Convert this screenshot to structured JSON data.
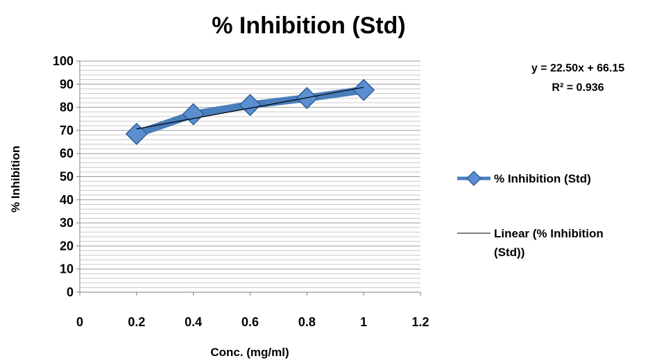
{
  "chart_data": {
    "type": "line",
    "title": "% Inhibition (Std)",
    "xlabel": "Conc. (mg/ml)",
    "ylabel": "% Inhibition",
    "xlim": [
      0,
      1.2
    ],
    "ylim": [
      0,
      100
    ],
    "x_ticks": [
      "0",
      "0.2",
      "0.4",
      "0.6",
      "0.8",
      "1",
      "1.2"
    ],
    "y_ticks": [
      "0",
      "10",
      "20",
      "30",
      "40",
      "50",
      "60",
      "70",
      "80",
      "90",
      "100"
    ],
    "grid": true,
    "legend_position": "right",
    "series": [
      {
        "name": "% Inhibition (Std)",
        "x": [
          0.2,
          0.4,
          0.6,
          0.8,
          1.0
        ],
        "values": [
          68.5,
          77.0,
          81.0,
          84.0,
          87.5
        ],
        "color": "#4a7ebb",
        "marker": "diamond"
      }
    ],
    "trendline": {
      "name_lines": [
        "Linear (% Inhibition",
        "(Std))"
      ],
      "slope": 22.5,
      "intercept": 66.15,
      "x_range": [
        0.2,
        1.0
      ],
      "equation": "y = 22.50x + 66.15",
      "r_squared": "R² = 0.936",
      "color": "#000000"
    }
  }
}
